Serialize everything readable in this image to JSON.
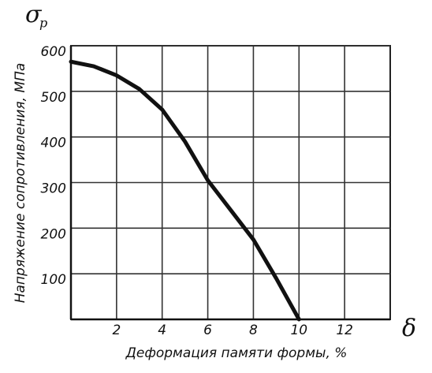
{
  "chart_data": {
    "type": "line",
    "y_symbol": "σ",
    "y_symbol_sub": "p",
    "x_symbol": "δ",
    "ylabel": "Напряжение сопротивления, МПа",
    "xlabel": "Деформация памяти формы, %",
    "x": [
      0,
      1,
      2,
      3,
      4,
      5,
      6,
      7,
      8,
      9,
      10
    ],
    "series": [
      {
        "color": "#111111",
        "values": [
          565,
          555,
          535,
          505,
          460,
          390,
          305,
          240,
          175,
          90,
          0
        ]
      }
    ],
    "xlim": [
      0,
      14
    ],
    "xticks": [
      2,
      4,
      6,
      8,
      10,
      12
    ],
    "ylim": [
      0,
      600
    ],
    "yticks": [
      100,
      200,
      300,
      400,
      500,
      600
    ],
    "grid": true
  }
}
